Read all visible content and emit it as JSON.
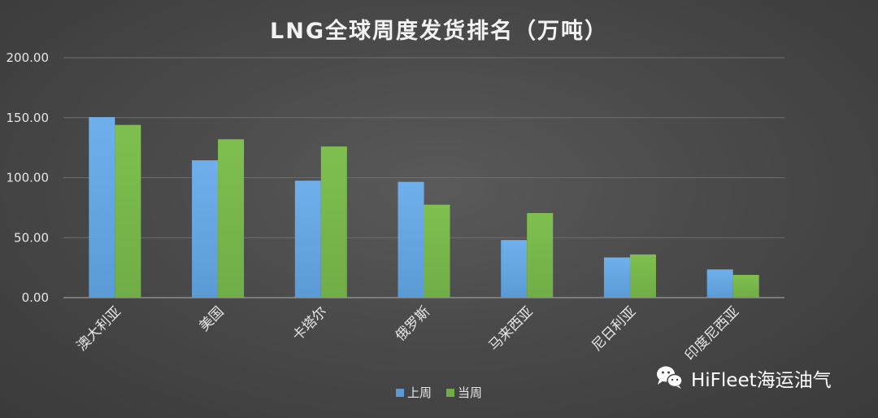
{
  "chart_data": {
    "type": "bar",
    "title": "LNG全球周度发货排名（万吨）",
    "categories": [
      "澳大利亚",
      "美国",
      "卡塔尔",
      "俄罗斯",
      "马来西亚",
      "尼日利亚",
      "印度尼西亚"
    ],
    "series": [
      {
        "name": "上周",
        "color": "#5b9bd5",
        "values": [
          150.5,
          114.5,
          97.5,
          96.5,
          48.0,
          33.5,
          23.5
        ]
      },
      {
        "name": "当周",
        "color": "#70ad47",
        "values": [
          144.0,
          132.0,
          126.0,
          77.5,
          70.5,
          36.0,
          19.0
        ]
      }
    ],
    "ylim": [
      0,
      200
    ],
    "yticks": [
      "0.00",
      "50.00",
      "100.00",
      "150.00",
      "200.00"
    ],
    "xlabel": "",
    "ylabel": "",
    "grid": true,
    "legend": "bottom"
  },
  "watermark": {
    "text": "HiFleet海运油气",
    "icon": "wechat-icon"
  }
}
